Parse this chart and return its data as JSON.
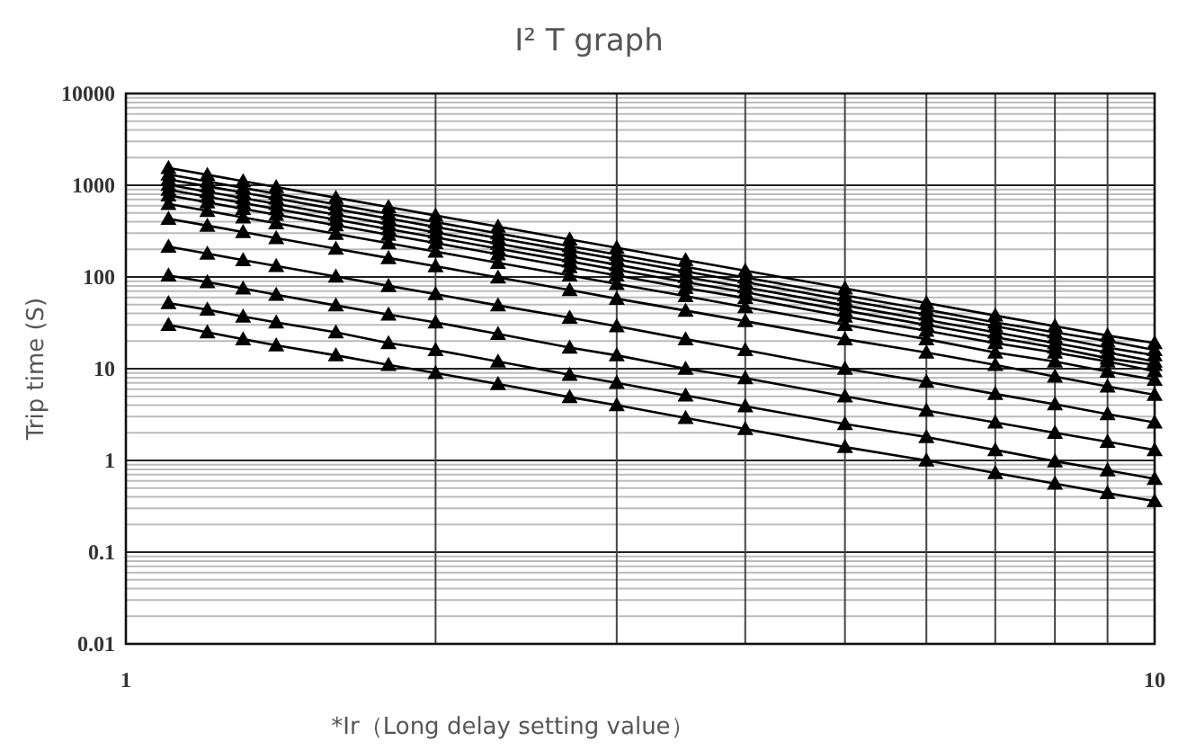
{
  "chart_data": {
    "type": "line",
    "title": "I² T graph",
    "xlabel": "*Ir（Long delay setting value）",
    "ylabel": "Trip time (S)",
    "log": "xy",
    "grid": true,
    "marker": "triangle",
    "line_style": "solid",
    "xlim": [
      1,
      10
    ],
    "xticks": [
      1,
      {
        "value": 2,
        "label": null
      },
      {
        "value": 3,
        "label": null
      },
      {
        "value": 4,
        "label": null
      },
      {
        "value": 5,
        "label": null
      },
      {
        "value": 6,
        "label": null
      },
      {
        "value": 7,
        "label": null
      },
      {
        "value": 8,
        "label": null
      },
      {
        "value": 9,
        "label": null
      },
      10
    ],
    "ylim": [
      0.01,
      10000
    ],
    "yticks": [
      0.01,
      0.1,
      1,
      10,
      100,
      1000,
      10000
    ],
    "x": [
      1.1,
      1.2,
      1.3,
      1.4,
      1.6,
      1.8,
      2,
      2.3,
      2.7,
      3,
      3.5,
      4,
      5,
      6,
      7,
      8,
      9,
      10
    ],
    "series": [
      {
        "color": "#000000",
        "values": [
          30,
          25,
          21,
          18,
          14,
          11,
          9,
          6.8,
          4.9,
          4,
          2.9,
          2.2,
          1.4,
          1,
          0.73,
          0.56,
          0.44,
          0.36
        ]
      },
      {
        "color": "#000000",
        "values": [
          52,
          44,
          37,
          32,
          25,
          19,
          16,
          12,
          8.6,
          7,
          5.1,
          3.9,
          2.5,
          1.8,
          1.3,
          0.98,
          0.78,
          0.63
        ]
      },
      {
        "color": "#000000",
        "values": [
          104,
          88,
          75,
          64,
          49,
          39,
          32,
          24,
          17,
          14,
          10,
          7.9,
          5,
          3.5,
          2.6,
          2,
          1.6,
          1.3
        ]
      },
      {
        "color": "#000000",
        "values": [
          214,
          180,
          153,
          132,
          101,
          80,
          65,
          49,
          36,
          29,
          21,
          16,
          10,
          7.2,
          5.3,
          4.1,
          3.2,
          2.6
        ]
      },
      {
        "color": "#000000",
        "values": [
          431,
          363,
          309,
          266,
          204,
          161,
          131,
          99,
          72,
          58,
          43,
          33,
          21,
          15,
          11,
          8.2,
          6.4,
          5.2
        ]
      },
      {
        "color": "#000000",
        "values": [
          625,
          525,
          447,
          386,
          295,
          233,
          189,
          143,
          104,
          84,
          62,
          47,
          30,
          21,
          15,
          12,
          9.3,
          7.6
        ]
      },
      {
        "color": "#000000",
        "values": [
          774,
          650,
          554,
          478,
          366,
          289,
          234,
          177,
          128,
          104,
          76,
          59,
          37,
          26,
          19,
          15,
          12,
          9.4
        ]
      },
      {
        "color": "#000000",
        "values": [
          893,
          750,
          639,
          551,
          422,
          333,
          270,
          204,
          148,
          120,
          88,
          68,
          43,
          30,
          22,
          17,
          13,
          11
        ]
      },
      {
        "color": "#000000",
        "values": [
          1012,
          850,
          724,
          625,
          478,
          378,
          306,
          231,
          168,
          136,
          100,
          77,
          49,
          34,
          25,
          19,
          15,
          12
        ]
      },
      {
        "color": "#000000",
        "values": [
          1160,
          975,
          831,
          716,
          548,
          433,
          351,
          265,
          193,
          156,
          115,
          88,
          56,
          39,
          29,
          22,
          17,
          14
        ]
      },
      {
        "color": "#000000",
        "values": [
          1309,
          1100,
          937,
          808,
          619,
          489,
          396,
          299,
          217,
          176,
          129,
          99,
          63,
          44,
          32,
          25,
          20,
          16
        ]
      },
      {
        "color": "#000000",
        "values": [
          1547,
          1300,
          1108,
          955,
          731,
          578,
          468,
          354,
          257,
          208,
          153,
          117,
          75,
          52,
          38,
          29,
          23,
          19
        ]
      }
    ]
  }
}
